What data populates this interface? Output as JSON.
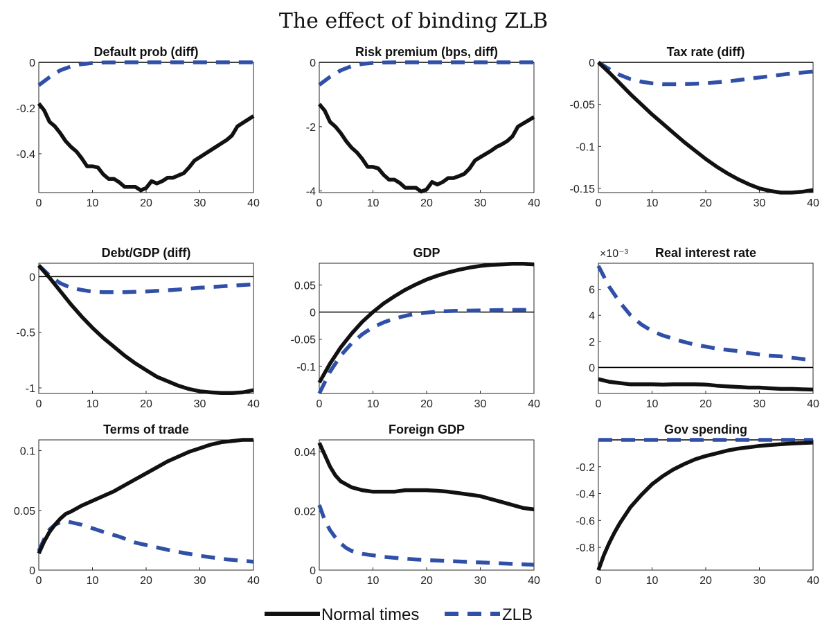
{
  "figure": {
    "title": "The effect of binding ZLB"
  },
  "legend": {
    "placement": "bottom-center",
    "items": [
      {
        "name": "Normal times",
        "color": "#111111",
        "style": "solid"
      },
      {
        "name": "ZLB",
        "color": "#3050a8",
        "style": "dashed"
      }
    ]
  },
  "chart_data": [
    {
      "type": "line",
      "title": "Default prob (diff)",
      "xlim": [
        0,
        40
      ],
      "ylim": [
        -0.57,
        0
      ],
      "xticks": [
        0,
        10,
        20,
        30,
        40
      ],
      "yticks": [
        0,
        -0.2,
        -0.4
      ],
      "ytick_labels": [
        "0",
        "-0.2",
        "-0.4"
      ],
      "zero_line": true,
      "series": [
        {
          "name": "Normal times",
          "x": [
            0,
            1,
            2,
            3,
            4,
            5,
            6,
            7,
            8,
            9,
            10,
            11,
            12,
            13,
            14,
            15,
            16,
            17,
            18,
            19,
            20,
            21,
            22,
            23,
            24,
            25,
            26,
            27,
            28,
            29,
            30,
            31,
            32,
            33,
            34,
            35,
            36,
            37,
            38,
            39,
            40
          ],
          "y": [
            -0.18,
            -0.21,
            -0.26,
            -0.28,
            -0.31,
            -0.345,
            -0.37,
            -0.39,
            -0.42,
            -0.455,
            -0.455,
            -0.46,
            -0.49,
            -0.51,
            -0.51,
            -0.525,
            -0.545,
            -0.545,
            -0.545,
            -0.56,
            -0.55,
            -0.52,
            -0.53,
            -0.52,
            -0.505,
            -0.505,
            -0.495,
            -0.485,
            -0.46,
            -0.43,
            -0.415,
            -0.4,
            -0.385,
            -0.37,
            -0.355,
            -0.34,
            -0.32,
            -0.28,
            -0.265,
            -0.25,
            -0.235
          ]
        },
        {
          "name": "ZLB",
          "x": [
            0,
            2,
            4,
            6,
            8,
            10,
            12,
            15,
            20,
            30,
            40
          ],
          "y": [
            -0.1,
            -0.065,
            -0.035,
            -0.018,
            -0.008,
            -0.003,
            -0.001,
            0,
            0,
            0,
            0
          ]
        }
      ]
    },
    {
      "type": "line",
      "title": "Risk premium (bps, diff)",
      "xlim": [
        0,
        40
      ],
      "ylim": [
        -4.05,
        0
      ],
      "xticks": [
        0,
        10,
        20,
        30,
        40
      ],
      "yticks": [
        0,
        -2,
        -4
      ],
      "ytick_labels": [
        "0",
        "-2",
        "-4"
      ],
      "zero_line": true,
      "series": [
        {
          "name": "Normal times",
          "x": [
            0,
            1,
            2,
            3,
            4,
            5,
            6,
            7,
            8,
            9,
            10,
            11,
            12,
            13,
            14,
            15,
            16,
            17,
            18,
            19,
            20,
            21,
            22,
            23,
            24,
            25,
            26,
            27,
            28,
            29,
            30,
            31,
            32,
            33,
            34,
            35,
            36,
            37,
            38,
            39,
            40
          ],
          "y": [
            -1.3,
            -1.5,
            -1.85,
            -2.0,
            -2.2,
            -2.45,
            -2.65,
            -2.8,
            -3.0,
            -3.25,
            -3.25,
            -3.3,
            -3.5,
            -3.65,
            -3.65,
            -3.75,
            -3.9,
            -3.9,
            -3.9,
            -4.02,
            -3.95,
            -3.72,
            -3.8,
            -3.72,
            -3.6,
            -3.6,
            -3.54,
            -3.47,
            -3.3,
            -3.05,
            -2.95,
            -2.85,
            -2.75,
            -2.63,
            -2.55,
            -2.45,
            -2.3,
            -2.0,
            -1.9,
            -1.8,
            -1.7
          ]
        },
        {
          "name": "ZLB",
          "x": [
            0,
            2,
            4,
            6,
            8,
            10,
            12,
            15,
            20,
            30,
            40
          ],
          "y": [
            -0.7,
            -0.45,
            -0.25,
            -0.12,
            -0.05,
            -0.02,
            -0.005,
            0,
            0,
            0,
            0
          ]
        }
      ]
    },
    {
      "type": "line",
      "title": "Tax rate (diff)",
      "xlim": [
        0,
        40
      ],
      "ylim": [
        -0.155,
        0
      ],
      "xticks": [
        0,
        10,
        20,
        30,
        40
      ],
      "yticks": [
        0,
        -0.05,
        -0.1,
        -0.15
      ],
      "ytick_labels": [
        "0",
        "-0.05",
        "-0.1",
        "-0.15"
      ],
      "zero_line": true,
      "series": [
        {
          "name": "Normal times",
          "x": [
            0,
            2,
            4,
            6,
            8,
            10,
            12,
            14,
            16,
            18,
            20,
            22,
            24,
            26,
            28,
            30,
            32,
            34,
            36,
            38,
            40
          ],
          "y": [
            0,
            -0.012,
            -0.025,
            -0.038,
            -0.05,
            -0.062,
            -0.073,
            -0.084,
            -0.095,
            -0.105,
            -0.115,
            -0.124,
            -0.132,
            -0.139,
            -0.145,
            -0.15,
            -0.153,
            -0.155,
            -0.155,
            -0.154,
            -0.152
          ]
        },
        {
          "name": "ZLB",
          "x": [
            0,
            2,
            4,
            6,
            8,
            10,
            12,
            15,
            18,
            20,
            25,
            30,
            35,
            40
          ],
          "y": [
            0,
            -0.008,
            -0.015,
            -0.02,
            -0.023,
            -0.025,
            -0.026,
            -0.026,
            -0.0255,
            -0.025,
            -0.022,
            -0.018,
            -0.014,
            -0.011
          ]
        }
      ]
    },
    {
      "type": "line",
      "title": "Debt/GDP (diff)",
      "xlim": [
        0,
        40
      ],
      "ylim": [
        -1.05,
        0.12
      ],
      "xticks": [
        0,
        10,
        20,
        30,
        40
      ],
      "yticks": [
        0,
        -0.5,
        -1
      ],
      "ytick_labels": [
        "0",
        "-0.5",
        "-1"
      ],
      "zero_line": true,
      "series": [
        {
          "name": "Normal times",
          "x": [
            0,
            2,
            4,
            6,
            8,
            10,
            12,
            14,
            16,
            18,
            20,
            22,
            24,
            26,
            28,
            30,
            32,
            34,
            36,
            38,
            40
          ],
          "y": [
            0.1,
            -0.01,
            -0.13,
            -0.25,
            -0.36,
            -0.46,
            -0.55,
            -0.63,
            -0.71,
            -0.78,
            -0.84,
            -0.9,
            -0.94,
            -0.98,
            -1.01,
            -1.03,
            -1.04,
            -1.045,
            -1.045,
            -1.04,
            -1.02
          ]
        },
        {
          "name": "ZLB",
          "x": [
            0,
            2,
            4,
            6,
            8,
            10,
            12,
            14,
            16,
            18,
            20,
            25,
            30,
            35,
            40
          ],
          "y": [
            0.1,
            0.01,
            -0.06,
            -0.1,
            -0.12,
            -0.135,
            -0.14,
            -0.14,
            -0.14,
            -0.137,
            -0.133,
            -0.12,
            -0.1,
            -0.085,
            -0.07
          ]
        }
      ]
    },
    {
      "type": "line",
      "title": "GDP",
      "xlim": [
        0,
        40
      ],
      "ylim": [
        -0.15,
        0.09
      ],
      "xticks": [
        0,
        10,
        20,
        30,
        40
      ],
      "yticks": [
        0.05,
        0,
        -0.05,
        -0.1
      ],
      "ytick_labels": [
        "0.05",
        "0",
        "-0.05",
        "-0.1"
      ],
      "zero_line": true,
      "series": [
        {
          "name": "Normal times",
          "x": [
            0,
            2,
            4,
            6,
            8,
            10,
            12,
            14,
            16,
            18,
            20,
            22,
            24,
            26,
            28,
            30,
            32,
            34,
            36,
            38,
            40
          ],
          "y": [
            -0.13,
            -0.095,
            -0.065,
            -0.04,
            -0.018,
            0.0,
            0.016,
            0.029,
            0.041,
            0.051,
            0.06,
            0.067,
            0.073,
            0.078,
            0.082,
            0.085,
            0.087,
            0.088,
            0.089,
            0.089,
            0.088
          ]
        },
        {
          "name": "ZLB",
          "x": [
            0,
            2,
            4,
            6,
            8,
            10,
            12,
            14,
            16,
            18,
            20,
            22,
            25,
            30,
            35,
            40
          ],
          "y": [
            -0.15,
            -0.11,
            -0.08,
            -0.058,
            -0.041,
            -0.028,
            -0.019,
            -0.012,
            -0.007,
            -0.003,
            -0.001,
            0.001,
            0.002,
            0.003,
            0.004,
            0.004
          ]
        }
      ]
    },
    {
      "type": "line",
      "title": "Real interest rate",
      "exponent_label": "×10⁻³",
      "xlim": [
        0,
        40
      ],
      "ylim": [
        -2.0,
        8.0
      ],
      "xticks": [
        0,
        10,
        20,
        30,
        40
      ],
      "yticks": [
        6,
        4,
        2,
        0
      ],
      "ytick_labels": [
        "6",
        "4",
        "2",
        "0"
      ],
      "zero_line": true,
      "series": [
        {
          "name": "Normal times",
          "x": [
            0,
            2,
            4,
            6,
            8,
            10,
            12,
            14,
            16,
            18,
            20,
            22,
            24,
            26,
            28,
            30,
            32,
            34,
            36,
            38,
            40
          ],
          "y": [
            -0.9,
            -1.1,
            -1.2,
            -1.3,
            -1.3,
            -1.3,
            -1.32,
            -1.3,
            -1.3,
            -1.3,
            -1.32,
            -1.4,
            -1.45,
            -1.5,
            -1.55,
            -1.55,
            -1.6,
            -1.65,
            -1.65,
            -1.68,
            -1.7
          ]
        },
        {
          "name": "ZLB",
          "x": [
            0,
            2,
            4,
            6,
            8,
            10,
            12,
            14,
            16,
            18,
            20,
            22,
            24,
            26,
            28,
            30,
            32,
            34,
            36,
            38,
            40
          ],
          "y": [
            7.8,
            6.2,
            5.0,
            4.0,
            3.3,
            2.8,
            2.45,
            2.2,
            1.95,
            1.75,
            1.6,
            1.45,
            1.35,
            1.25,
            1.1,
            1.0,
            0.9,
            0.85,
            0.75,
            0.65,
            0.55
          ]
        }
      ]
    },
    {
      "type": "line",
      "title": "Terms of trade",
      "xlim": [
        0,
        40
      ],
      "ylim": [
        0,
        0.109
      ],
      "xticks": [
        0,
        10,
        20,
        30,
        40
      ],
      "yticks": [
        0.1,
        0.05,
        0
      ],
      "ytick_labels": [
        "0.1",
        "0.05",
        "0"
      ],
      "zero_line": false,
      "series": [
        {
          "name": "Normal times",
          "x": [
            0,
            1,
            2,
            3,
            4,
            5,
            6,
            8,
            10,
            12,
            14,
            16,
            18,
            20,
            22,
            24,
            26,
            28,
            30,
            32,
            34,
            36,
            38,
            40
          ],
          "y": [
            0.014,
            0.024,
            0.032,
            0.038,
            0.043,
            0.047,
            0.049,
            0.054,
            0.058,
            0.062,
            0.066,
            0.071,
            0.076,
            0.081,
            0.086,
            0.091,
            0.095,
            0.099,
            0.102,
            0.105,
            0.107,
            0.108,
            0.109,
            0.109
          ]
        },
        {
          "name": "ZLB",
          "x": [
            0,
            1,
            2,
            3,
            4,
            5,
            6,
            8,
            10,
            12,
            15,
            18,
            20,
            25,
            30,
            35,
            40
          ],
          "y": [
            0.016,
            0.026,
            0.034,
            0.038,
            0.04,
            0.041,
            0.04,
            0.038,
            0.035,
            0.032,
            0.028,
            0.023,
            0.021,
            0.016,
            0.012,
            0.009,
            0.007
          ]
        }
      ]
    },
    {
      "type": "line",
      "title": "Foreign GDP",
      "xlim": [
        0,
        40
      ],
      "ylim": [
        0,
        0.044
      ],
      "xticks": [
        0,
        10,
        20,
        30,
        40
      ],
      "yticks": [
        0.04,
        0.02,
        0
      ],
      "ytick_labels": [
        "0.04",
        "0.02",
        "0"
      ],
      "zero_line": false,
      "series": [
        {
          "name": "Normal times",
          "x": [
            0,
            1,
            2,
            3,
            4,
            5,
            6,
            8,
            10,
            12,
            14,
            16,
            18,
            20,
            22,
            24,
            26,
            28,
            30,
            32,
            34,
            36,
            38,
            40
          ],
          "y": [
            0.043,
            0.039,
            0.035,
            0.032,
            0.03,
            0.029,
            0.028,
            0.027,
            0.0265,
            0.0265,
            0.0265,
            0.027,
            0.027,
            0.027,
            0.0268,
            0.0265,
            0.026,
            0.0255,
            0.025,
            0.024,
            0.023,
            0.022,
            0.021,
            0.0205
          ]
        },
        {
          "name": "ZLB",
          "x": [
            0,
            1,
            2,
            3,
            4,
            5,
            6,
            8,
            10,
            12,
            15,
            18,
            20,
            25,
            30,
            35,
            40
          ],
          "y": [
            0.022,
            0.017,
            0.0135,
            0.011,
            0.009,
            0.0075,
            0.0065,
            0.0055,
            0.005,
            0.0045,
            0.004,
            0.0036,
            0.0034,
            0.003,
            0.0026,
            0.0022,
            0.0018
          ]
        }
      ]
    },
    {
      "type": "line",
      "title": "Gov spending",
      "xlim": [
        0,
        40
      ],
      "ylim": [
        -0.97,
        0
      ],
      "xticks": [
        0,
        10,
        20,
        30,
        40
      ],
      "yticks": [
        -0.2,
        -0.4,
        -0.6,
        -0.8
      ],
      "ytick_labels": [
        "-0.2",
        "-0.4",
        "-0.6",
        "-0.8"
      ],
      "zero_line": true,
      "series": [
        {
          "name": "Normal times",
          "x": [
            0,
            1,
            2,
            3,
            4,
            5,
            6,
            8,
            10,
            12,
            14,
            16,
            18,
            20,
            22,
            24,
            26,
            28,
            30,
            32,
            34,
            36,
            38,
            40
          ],
          "y": [
            -0.97,
            -0.86,
            -0.77,
            -0.69,
            -0.62,
            -0.56,
            -0.5,
            -0.41,
            -0.33,
            -0.27,
            -0.22,
            -0.18,
            -0.145,
            -0.12,
            -0.1,
            -0.08,
            -0.065,
            -0.055,
            -0.045,
            -0.038,
            -0.032,
            -0.027,
            -0.023,
            -0.02
          ]
        },
        {
          "name": "ZLB",
          "x": [
            0,
            10,
            20,
            30,
            40
          ],
          "y": [
            0,
            0,
            0,
            0,
            0
          ]
        }
      ]
    }
  ]
}
